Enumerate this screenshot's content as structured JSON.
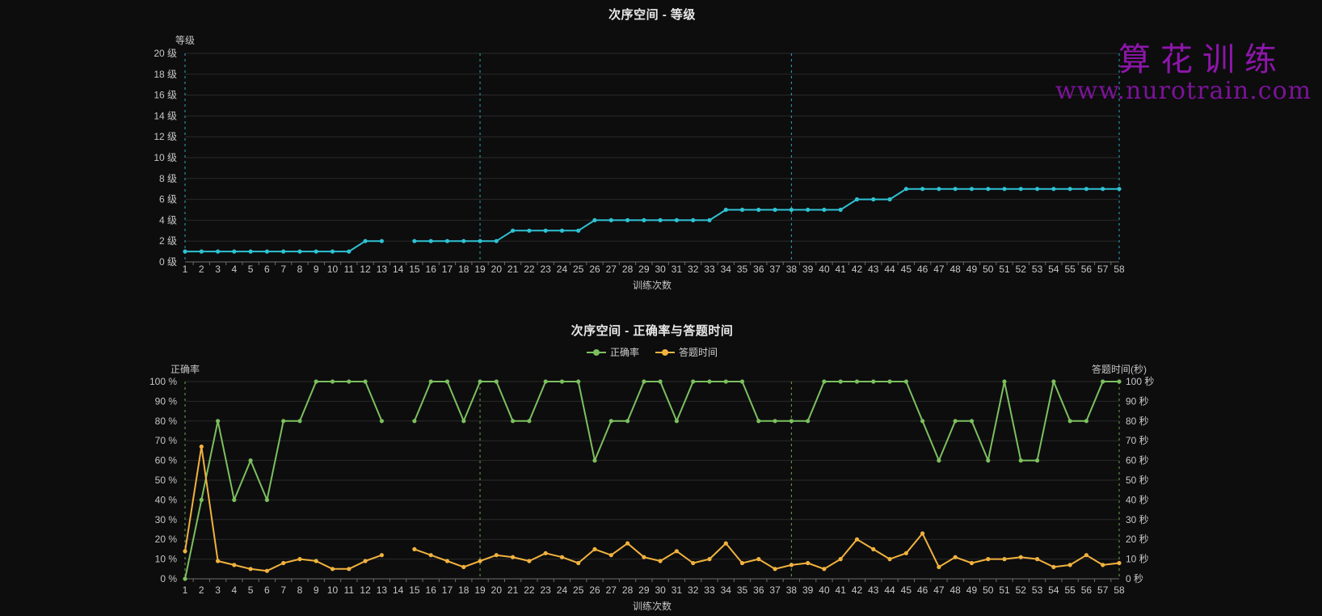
{
  "watermark": {
    "brand": "算花训练",
    "url": "www.nurotrain.com"
  },
  "chart_data": [
    {
      "type": "line",
      "title": "次序空间 - 等级",
      "x_name": "训练次数",
      "y_name": "等级",
      "y_unit": "级",
      "y_min": 0,
      "y_max": 20,
      "y_step": 2,
      "grid": true,
      "vline_categories": [
        1,
        19,
        38,
        58
      ],
      "categories": [
        1,
        2,
        3,
        4,
        5,
        6,
        7,
        8,
        9,
        10,
        11,
        12,
        13,
        14,
        15,
        16,
        17,
        18,
        19,
        20,
        21,
        22,
        23,
        24,
        25,
        26,
        27,
        28,
        29,
        30,
        31,
        32,
        33,
        34,
        35,
        36,
        37,
        38,
        39,
        40,
        41,
        42,
        43,
        44,
        45,
        46,
        47,
        48,
        49,
        50,
        51,
        52,
        53,
        54,
        55,
        56,
        57,
        58
      ],
      "series": [
        {
          "name": "等级",
          "color": "#2fc2d2",
          "axis": "left",
          "values": [
            1,
            1,
            1,
            1,
            1,
            1,
            1,
            1,
            1,
            1,
            1,
            2,
            2,
            null,
            2,
            2,
            2,
            2,
            2,
            2,
            3,
            3,
            3,
            3,
            3,
            4,
            4,
            4,
            4,
            4,
            4,
            4,
            4,
            5,
            5,
            5,
            5,
            5,
            5,
            5,
            5,
            6,
            6,
            6,
            7,
            7,
            7,
            7,
            7,
            7,
            7,
            7,
            7,
            7,
            7,
            7,
            7,
            7
          ]
        }
      ]
    },
    {
      "type": "line",
      "title": "次序空间 - 正确率与答题时间",
      "x_name": "训练次数",
      "y_name": "正确率",
      "y_unit": "%",
      "y_right_name": "答题时间(秒)",
      "y_right_unit": "秒",
      "y_min": 0,
      "y_max": 100,
      "y_step": 10,
      "grid": true,
      "legend_position": "top-center",
      "vline_categories": [
        1,
        19,
        38,
        58
      ],
      "categories": [
        1,
        2,
        3,
        4,
        5,
        6,
        7,
        8,
        9,
        10,
        11,
        12,
        13,
        14,
        15,
        16,
        17,
        18,
        19,
        20,
        21,
        22,
        23,
        24,
        25,
        26,
        27,
        28,
        29,
        30,
        31,
        32,
        33,
        34,
        35,
        36,
        37,
        38,
        39,
        40,
        41,
        42,
        43,
        44,
        45,
        46,
        47,
        48,
        49,
        50,
        51,
        52,
        53,
        54,
        55,
        56,
        57,
        58
      ],
      "series": [
        {
          "name": "正确率",
          "color": "#7cc05e",
          "axis": "left",
          "values": [
            0,
            40,
            80,
            40,
            60,
            40,
            80,
            80,
            100,
            100,
            100,
            100,
            80,
            null,
            80,
            100,
            100,
            80,
            100,
            100,
            80,
            80,
            100,
            100,
            100,
            60,
            80,
            80,
            100,
            100,
            80,
            100,
            100,
            100,
            100,
            80,
            80,
            80,
            80,
            100,
            100,
            100,
            100,
            100,
            100,
            80,
            60,
            80,
            80,
            60,
            100,
            60,
            60,
            100,
            80,
            80,
            100,
            100
          ]
        },
        {
          "name": "答题时间",
          "color": "#f1b23e",
          "axis": "right",
          "values": [
            14,
            67,
            9,
            7,
            5,
            4,
            8,
            10,
            9,
            5,
            5,
            9,
            12,
            null,
            15,
            12,
            9,
            6,
            9,
            12,
            11,
            9,
            13,
            11,
            8,
            15,
            12,
            18,
            11,
            9,
            14,
            8,
            10,
            18,
            8,
            10,
            5,
            7,
            8,
            5,
            10,
            20,
            15,
            10,
            13,
            23,
            6,
            11,
            8,
            10,
            10,
            11,
            10,
            6,
            7,
            12,
            7,
            8
          ]
        }
      ]
    }
  ],
  "colors": {
    "background": "#0d0d0e",
    "gridline": "#2a2a2a",
    "axis_line": "#6e6e6e",
    "tick_label": "#c6c6c6",
    "title": "#e8e8e8",
    "level_series": "#2fc2d2",
    "accuracy_series": "#7cc05e",
    "time_series": "#f1b23e",
    "watermark_brand": "#8e16ab",
    "watermark_url": "#7c1399"
  }
}
